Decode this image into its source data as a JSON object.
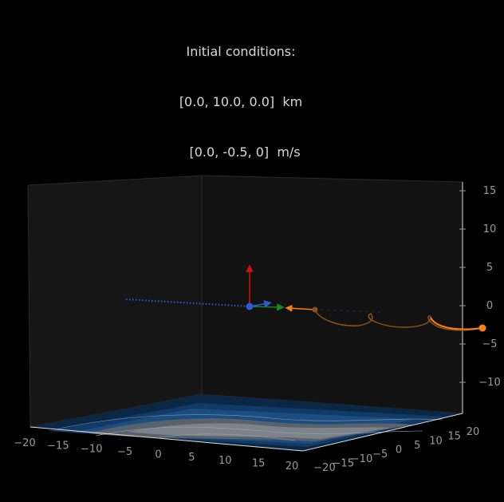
{
  "title_lines": [
    "Initial conditions:",
    "[0.0, 10.0, 0.0]  km",
    "  [0.0, -0.5, 0]  m/s"
  ],
  "chart_data": {
    "type": "3d-trajectory",
    "title": "Initial conditions:\n[0.0, 10.0, 0.0]  km\n  [0.0, -0.5, 0]  m/s",
    "xlabel": "",
    "ylabel": "",
    "zlabel": "",
    "xlim": [
      -20,
      20
    ],
    "ylim": [
      -20,
      20
    ],
    "zlim": [
      -15,
      15
    ],
    "x_ticks": [
      "−20",
      "−15",
      "−10",
      "−5",
      "0",
      "5",
      "10",
      "15",
      "20"
    ],
    "y_ticks": [
      "−20",
      "−15",
      "−10",
      "−5",
      "0",
      "5",
      "10",
      "15",
      "20"
    ],
    "z_ticks": [
      "−10",
      "−5",
      "0",
      "5",
      "10",
      "15"
    ],
    "grid": false,
    "background": "#000000",
    "pane_color": "#141414",
    "floor_contour_colors": [
      "#08213d",
      "#0e3560",
      "#1a4f82",
      "#56606b",
      "#8a8f96"
    ],
    "colors": {
      "trajectory": "#ff7f0e",
      "trajectory_shadow": "#9a5a1a",
      "projection": "#2b5cd6",
      "axis_x": "#1a8a1a",
      "axis_z": "#d01010",
      "axis_y": "#2b5cd6"
    }
  }
}
